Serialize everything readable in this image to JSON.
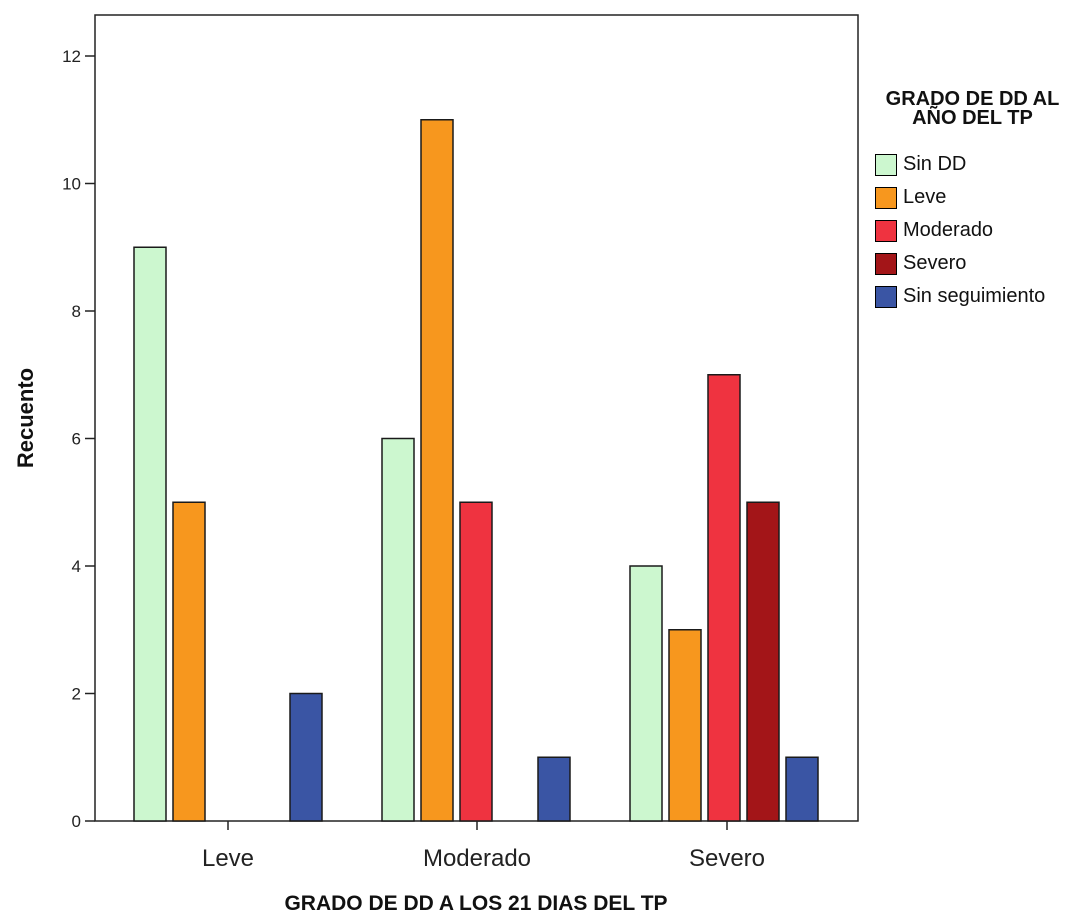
{
  "chart_data": {
    "type": "bar",
    "xlabel": "GRADO DE DD A LOS 21 DIAS DEL TP",
    "ylabel": "Recuento",
    "ylim": [
      0,
      12.6
    ],
    "yticks": [
      "0",
      "2",
      "4",
      "6",
      "8",
      "10",
      "12"
    ],
    "categories": [
      "Leve",
      "Moderado",
      "Severo"
    ],
    "legend": {
      "title_line1": "GRADO DE DD AL",
      "title_line2": "AÑO DEL TP",
      "placement": "right"
    },
    "grid": false,
    "series": [
      {
        "name": "Sin DD",
        "color": "#ccf7cf",
        "values": [
          9,
          6,
          4
        ]
      },
      {
        "name": "Leve",
        "color": "#f7971e",
        "values": [
          5,
          11,
          3
        ]
      },
      {
        "name": "Moderado",
        "color": "#ef3340",
        "values": [
          0,
          5,
          7
        ]
      },
      {
        "name": "Severo",
        "color": "#a31518",
        "values": [
          0,
          0,
          5
        ]
      },
      {
        "name": "Sin seguimiento",
        "color": "#3a55a4",
        "values": [
          2,
          1,
          1
        ]
      }
    ]
  }
}
